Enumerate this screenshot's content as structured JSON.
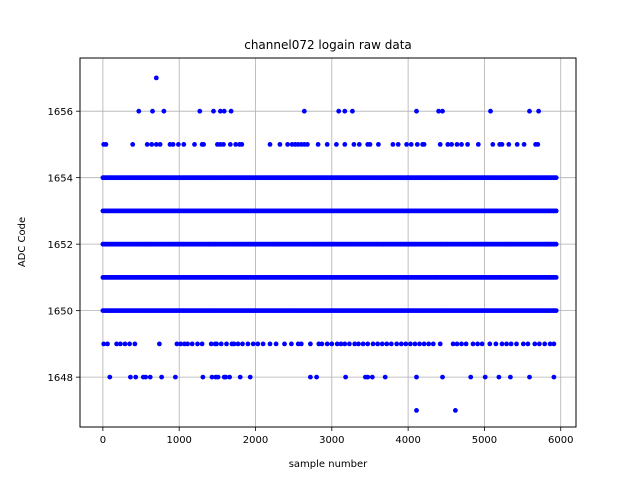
{
  "chart_data": {
    "type": "scatter",
    "title": "channel072 logain raw data",
    "xlabel": "sample number",
    "ylabel": "ADC Code",
    "xlim": [
      -300,
      6200
    ],
    "ylim": [
      1646.5,
      1657.6
    ],
    "xticks": [
      0,
      1000,
      2000,
      3000,
      4000,
      5000,
      6000
    ],
    "yticks": [
      1648,
      1650,
      1652,
      1654,
      1656
    ],
    "grid": true,
    "marker_color": "#0000ff",
    "x_range_dense": [
      0,
      5940
    ],
    "dense_levels": [
      1650,
      1651,
      1652,
      1653,
      1654
    ],
    "points": {
      "1657": [
        700
      ],
      "1656": [
        470,
        650,
        800,
        1270,
        1450,
        1540,
        1590,
        1680,
        2640,
        3090,
        3170,
        3270,
        4110,
        4400,
        4450,
        5080,
        5590,
        5710
      ],
      "1655": [
        10,
        40,
        390,
        580,
        640,
        700,
        750,
        880,
        920,
        990,
        1060,
        1200,
        1300,
        1320,
        1500,
        1540,
        1580,
        1670,
        1740,
        1790,
        1820,
        2190,
        2320,
        2420,
        2480,
        2520,
        2560,
        2600,
        2640,
        2680,
        2820,
        2940,
        3060,
        3170,
        3290,
        3360,
        3470,
        3500,
        3610,
        3800,
        3870,
        3980,
        4040,
        4120,
        4190,
        4210,
        4420,
        4520,
        4570,
        4640,
        4700,
        4780,
        4920,
        5110,
        5200,
        5230,
        5320,
        5430,
        5520,
        5670,
        5700
      ],
      "1649": [
        10,
        60,
        180,
        230,
        290,
        350,
        420,
        740,
        970,
        1020,
        1070,
        1110,
        1170,
        1240,
        1300,
        1420,
        1470,
        1490,
        1550,
        1620,
        1690,
        1720,
        1770,
        1830,
        1900,
        1970,
        2030,
        2100,
        2190,
        2270,
        2380,
        2470,
        2560,
        2600,
        2720,
        2830,
        2870,
        2940,
        3000,
        3070,
        3120,
        3170,
        3230,
        3300,
        3350,
        3410,
        3470,
        3540,
        3600,
        3660,
        3720,
        3780,
        3850,
        3910,
        3970,
        4030,
        4090,
        4150,
        4210,
        4270,
        4330,
        4420,
        4590,
        4640,
        4700,
        4760,
        4850,
        4910,
        4970,
        5070,
        5150,
        5230,
        5290,
        5350,
        5420,
        5510,
        5570,
        5660,
        5720,
        5790,
        5860,
        5910
      ],
      "1648": [
        90,
        360,
        430,
        530,
        560,
        620,
        770,
        950,
        1310,
        1430,
        1480,
        1510,
        1590,
        1610,
        1660,
        1800,
        1930,
        2720,
        2800,
        3180,
        3440,
        3470,
        3530,
        3700,
        4110,
        4450,
        4820,
        5010,
        5190,
        5340,
        5590,
        5910
      ],
      "1647": [
        4110,
        4620
      ]
    }
  }
}
